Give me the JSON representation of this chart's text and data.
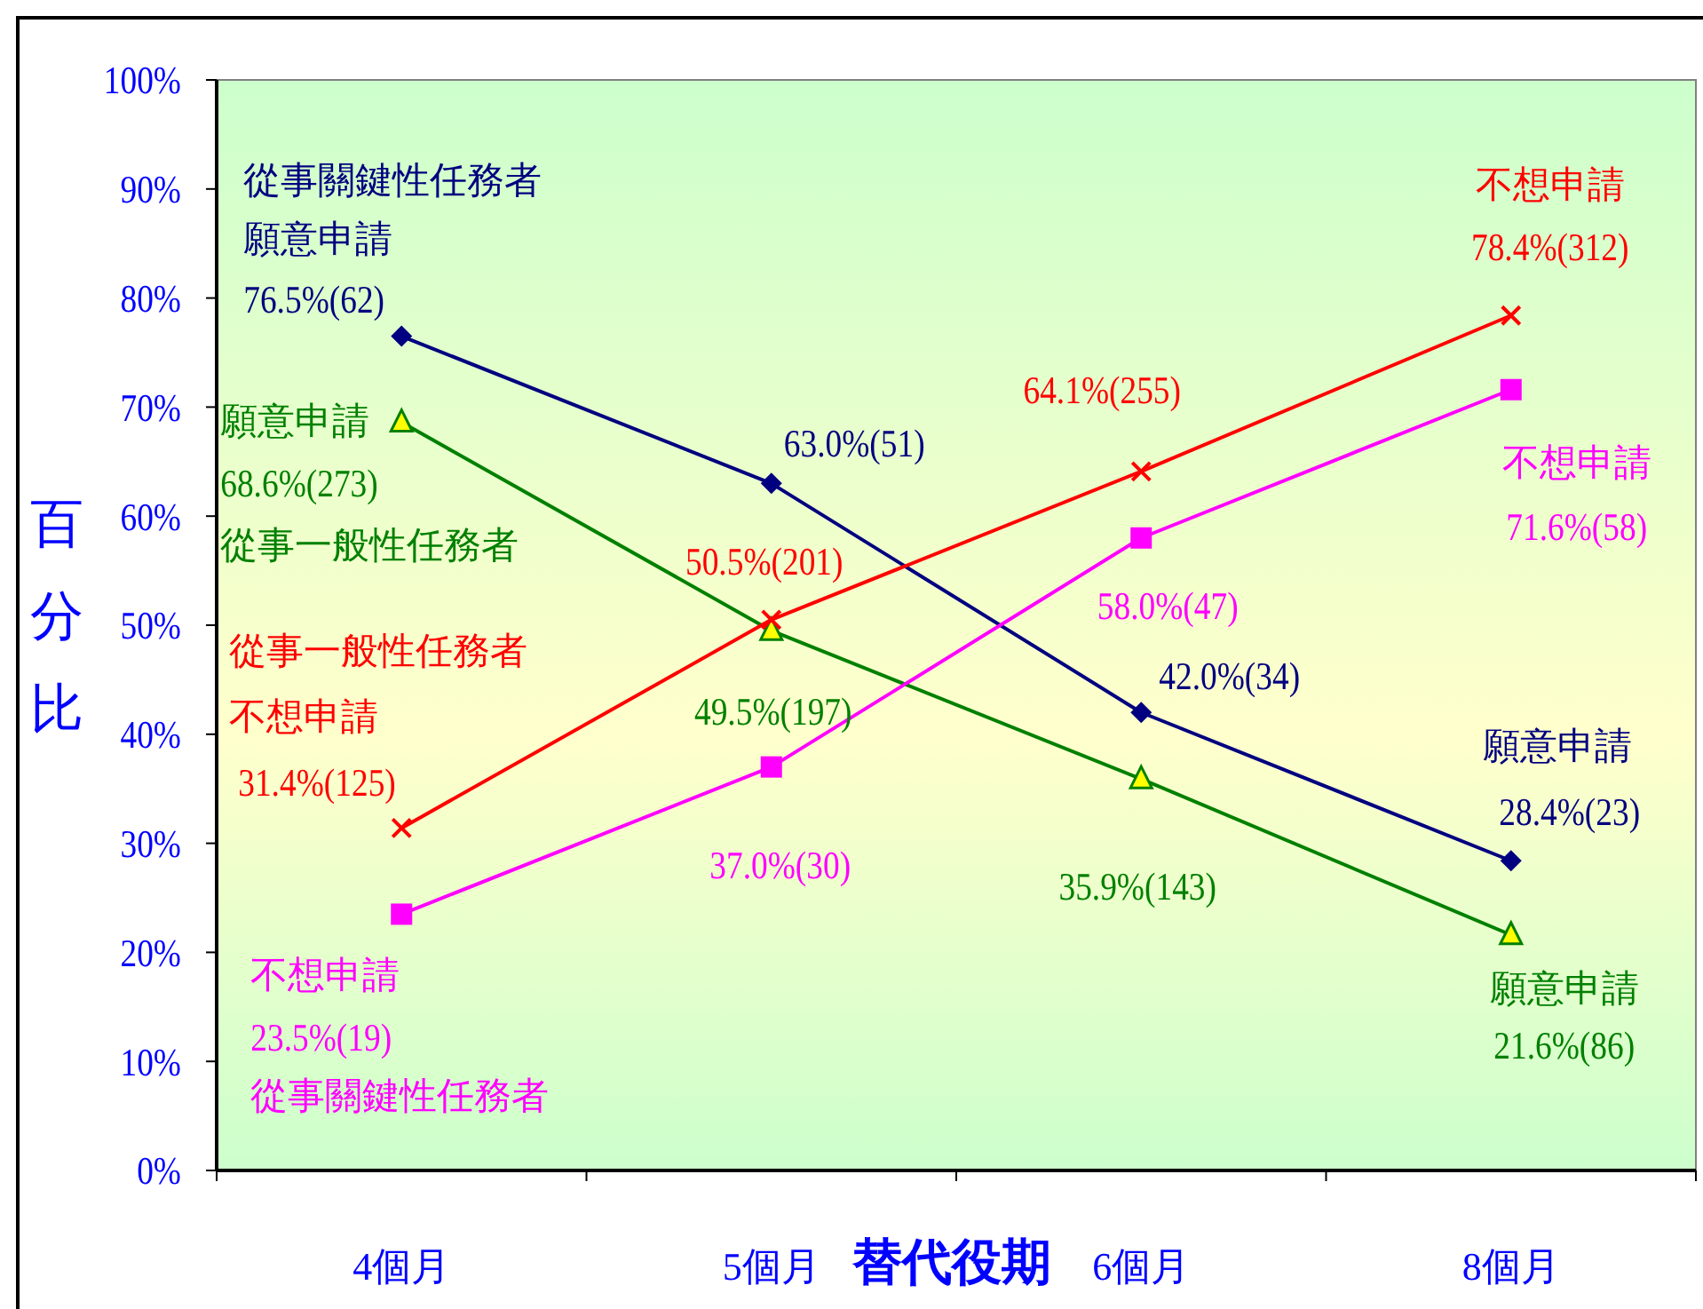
{
  "chart_data": {
    "type": "line",
    "xlabel": "替代役期",
    "ylabel": "百分比",
    "categories": [
      "4個月",
      "5個月",
      "6個月",
      "8個月"
    ],
    "ylim": [
      0,
      100
    ],
    "yticks": [
      {
        "value": 0,
        "label": "0%"
      },
      {
        "value": 10,
        "label": "10%"
      },
      {
        "value": 20,
        "label": "20%"
      },
      {
        "value": 30,
        "label": "30%"
      },
      {
        "value": 40,
        "label": "40%"
      },
      {
        "value": 50,
        "label": "50%"
      },
      {
        "value": 60,
        "label": "60%"
      },
      {
        "value": 70,
        "label": "70%"
      },
      {
        "value": 80,
        "label": "80%"
      },
      {
        "value": 90,
        "label": "90%"
      },
      {
        "value": 100,
        "label": "100%"
      }
    ],
    "grid": false,
    "series": [
      {
        "color": "#000080",
        "marker": "diamond",
        "values": [
          76.5,
          63.0,
          42.0,
          28.4
        ],
        "value_labels": [
          "76.5%(62)",
          "63.0%(51)",
          "42.0%(34)",
          "28.4%(23)"
        ]
      },
      {
        "color": "#008000",
        "marker": "triangle",
        "values": [
          68.6,
          49.5,
          35.9,
          21.6
        ],
        "value_labels": [
          "68.6%(273)",
          "49.5%(197)",
          "35.9%(143)",
          "21.6%(86)"
        ]
      },
      {
        "color": "#ff0000",
        "marker": "cross",
        "values": [
          31.4,
          50.5,
          64.1,
          78.4
        ],
        "value_labels": [
          "31.4%(125)",
          "50.5%(201)",
          "64.1%(255)",
          "78.4%(312)"
        ]
      },
      {
        "color": "#ff00ff",
        "marker": "square",
        "values": [
          23.5,
          37.0,
          58.0,
          71.6
        ],
        "value_labels": [
          "23.5%(19)",
          "37.0%(30)",
          "58.0%(47)",
          "71.6%(58)"
        ]
      }
    ],
    "annotations": [
      "從事關鍵性任務者",
      {
        "text": "願意申請",
        "x": "4個月",
        "y": 76.5
      },
      {
        "text": "願意申請",
        "x": "8個月",
        "y": 28.4
      },
      {
        "text": "願意申請",
        "x": "4個月",
        "y": 68.6
      },
      {
        "text": "從事一般性任務者",
        "x": "4個月",
        "y": 68.6
      },
      {
        "text": "願意申請",
        "x": "8個月",
        "y": 21.6
      },
      "從事一般性任務者",
      {
        "text": "不想申請",
        "x": "4個月",
        "y": 31.4
      },
      {
        "text": "不想申請",
        "x": "8個月",
        "y": 78.4
      },
      {
        "text": "不想申請",
        "x": "4個月",
        "y": 23.5
      },
      "從事關鍵性任務者",
      {
        "text": "不想申請",
        "x": "8個月",
        "y": 71.6
      }
    ]
  }
}
